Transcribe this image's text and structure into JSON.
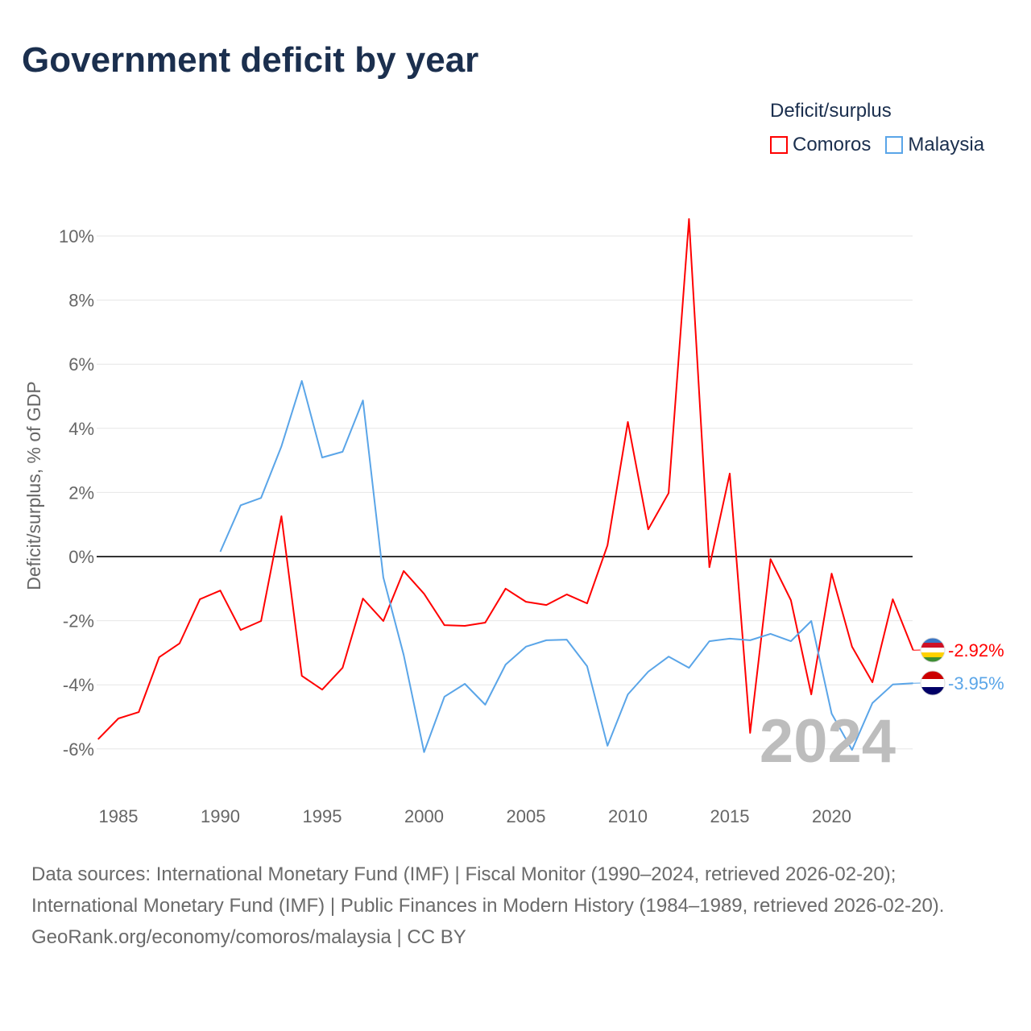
{
  "title": "Government deficit by year",
  "legend": {
    "title": "Deficit/surplus",
    "items": [
      {
        "name": "Comoros",
        "color": "#ff0000"
      },
      {
        "name": "Malaysia",
        "color": "#5aa5e8"
      }
    ]
  },
  "year_watermark": "2024",
  "footer": {
    "sources": "Data sources: International Monetary Fund (IMF) | Fiscal Monitor (1990–2024, retrieved 2026-02-20); International Monetary Fund (IMF) | Public Finances in Modern History (1984–1989, retrieved 2026-02-20).",
    "link": "GeoRank.org/economy/comoros/malaysia",
    "license": " | CC BY"
  },
  "chart_data": {
    "type": "line",
    "title": "Government deficit by year",
    "xlabel": "",
    "ylabel": "Deficit/surplus, % of GDP",
    "xlim": [
      1984,
      2024
    ],
    "ylim": [
      -7,
      10.5
    ],
    "yticks": [
      -6,
      -4,
      -2,
      0,
      2,
      4,
      6,
      8,
      10
    ],
    "ytick_labels": [
      "-6%",
      "-4%",
      "-2%",
      "0%",
      "2%",
      "4%",
      "6%",
      "8%",
      "10%"
    ],
    "xticks": [
      1985,
      1990,
      1995,
      2000,
      2005,
      2010,
      2015,
      2020
    ],
    "xtick_labels": [
      "1985",
      "1990",
      "1995",
      "2000",
      "2005",
      "2010",
      "2015",
      "2020"
    ],
    "grid": true,
    "legend_position": "top-right",
    "series": [
      {
        "name": "Comoros",
        "color": "#ff0000",
        "end_label": "-2.92%",
        "x": [
          1984,
          1985,
          1986,
          1987,
          1988,
          1989,
          1990,
          1991,
          1992,
          1993,
          1994,
          1995,
          1996,
          1997,
          1998,
          1999,
          2000,
          2001,
          2002,
          2003,
          2004,
          2005,
          2006,
          2007,
          2008,
          2009,
          2010,
          2011,
          2012,
          2013,
          2014,
          2015,
          2016,
          2017,
          2018,
          2019,
          2020,
          2021,
          2022,
          2023,
          2024
        ],
        "values": [
          -5.7,
          -5.05,
          -4.85,
          -3.14,
          -2.71,
          -1.33,
          -1.06,
          -2.29,
          -2.01,
          1.26,
          -3.72,
          -4.15,
          -3.47,
          -1.31,
          -2.01,
          -0.45,
          -1.16,
          -2.14,
          -2.16,
          -2.06,
          -1.0,
          -1.41,
          -1.51,
          -1.18,
          -1.46,
          0.35,
          4.2,
          0.85,
          1.98,
          10.53,
          -0.33,
          2.59,
          -5.5,
          -0.08,
          -1.36,
          -4.3,
          -0.53,
          -2.81,
          -3.92,
          -1.33,
          -2.92
        ]
      },
      {
        "name": "Malaysia",
        "color": "#5aa5e8",
        "end_label": "-3.95%",
        "x": [
          1990,
          1991,
          1992,
          1993,
          1994,
          1995,
          1996,
          1997,
          1998,
          1999,
          2000,
          2001,
          2002,
          2003,
          2004,
          2005,
          2006,
          2007,
          2008,
          2009,
          2010,
          2011,
          2012,
          2013,
          2014,
          2015,
          2016,
          2017,
          2018,
          2019,
          2020,
          2021,
          2022,
          2023,
          2024
        ],
        "values": [
          0.15,
          1.6,
          1.83,
          3.44,
          5.48,
          3.09,
          3.27,
          4.87,
          -0.65,
          -3.07,
          -6.1,
          -4.37,
          -3.97,
          -4.62,
          -3.37,
          -2.81,
          -2.61,
          -2.59,
          -3.42,
          -5.9,
          -4.3,
          -3.59,
          -3.12,
          -3.47,
          -2.64,
          -2.56,
          -2.61,
          -2.41,
          -2.64,
          -2.01,
          -4.9,
          -6.03,
          -4.57,
          -3.99,
          -3.95
        ]
      }
    ]
  }
}
